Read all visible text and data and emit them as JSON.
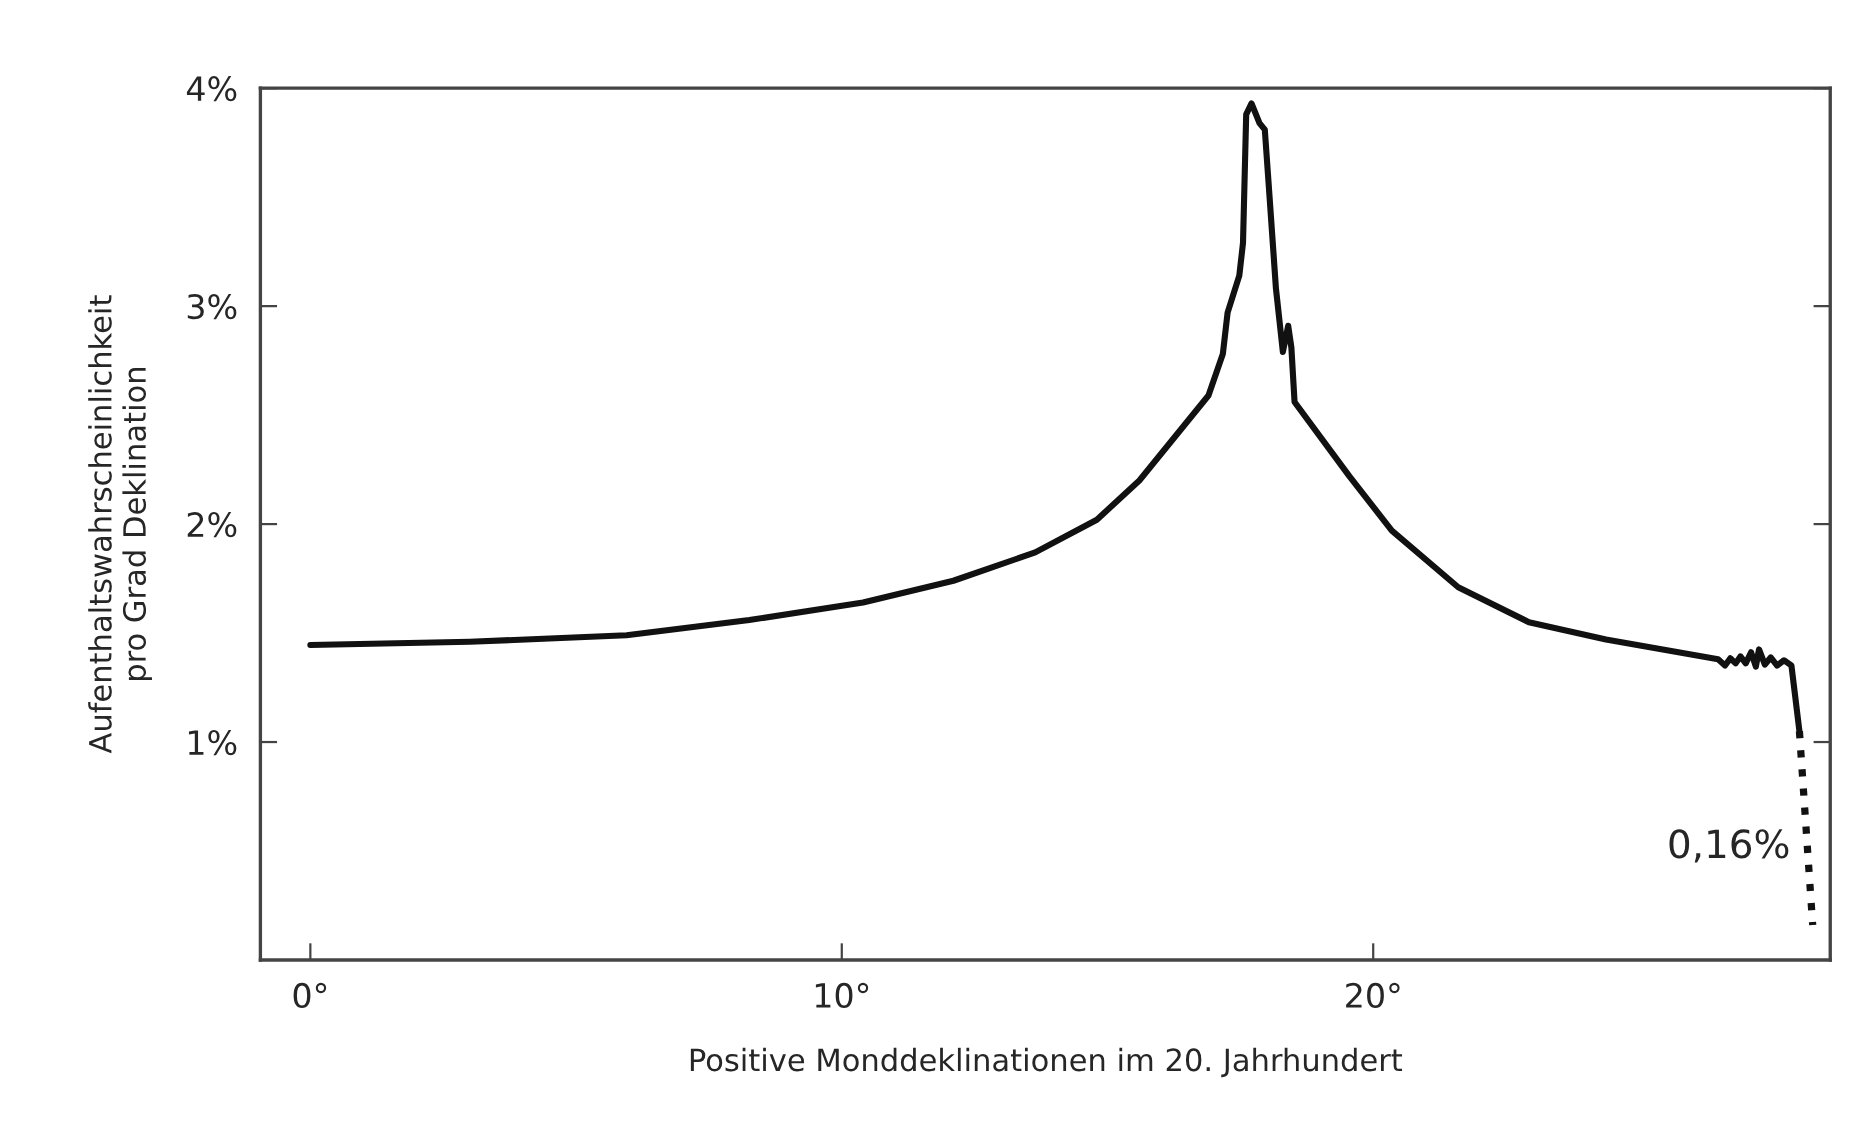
{
  "chart_data": {
    "type": "line",
    "xlabel": "Positive Monddeklinationen im 20. Jahrhundert",
    "ylabel": "Aufenthaltswahrscheinlichkeit\npro Grad Deklination",
    "xlim": [
      -0.94,
      28.6
    ],
    "ylim": [
      0,
      4
    ],
    "xticks": [
      {
        "value": 0,
        "label": "0°"
      },
      {
        "value": 10,
        "label": "10°"
      },
      {
        "value": 20,
        "label": "20°"
      }
    ],
    "yticks": [
      {
        "value": 1,
        "label": "1%"
      },
      {
        "value": 2,
        "label": "2%"
      },
      {
        "value": 3,
        "label": "3%"
      },
      {
        "value": 4,
        "label": "4%"
      }
    ],
    "grid": false,
    "legend": false,
    "marker": "none",
    "series": [
      {
        "color": "#111111",
        "line_style": "solid",
        "x": [
          0,
          3.0,
          5.95,
          8.26,
          10.4,
          12.1,
          13.64,
          14.8,
          15.6,
          16.9,
          17.17,
          17.26,
          17.48,
          17.55,
          17.61,
          17.71,
          17.86,
          17.96,
          18.05,
          18.17,
          18.3,
          18.4,
          18.46,
          18.52,
          19.55,
          20.35,
          21.6,
          22.93,
          24.38,
          26.49,
          26.62,
          26.72,
          26.82,
          26.91,
          27.01,
          27.11,
          27.2,
          27.26,
          27.37,
          27.48,
          27.6,
          27.73,
          27.87,
          28.02
        ],
        "values": [
          1.445,
          1.46,
          1.49,
          1.56,
          1.64,
          1.74,
          1.87,
          2.02,
          2.2,
          2.59,
          2.78,
          2.97,
          3.14,
          3.29,
          3.88,
          3.93,
          3.84,
          3.81,
          3.5,
          3.08,
          2.79,
          2.91,
          2.81,
          2.56,
          2.22,
          1.97,
          1.71,
          1.55,
          1.47,
          1.38,
          1.351,
          1.384,
          1.361,
          1.393,
          1.361,
          1.412,
          1.346,
          1.425,
          1.355,
          1.388,
          1.351,
          1.375,
          1.351,
          1.05
        ]
      },
      {
        "color": "#111111",
        "line_style": "dotted",
        "x": [
          28.02,
          28.27
        ],
        "values": [
          1.05,
          0.16
        ]
      }
    ],
    "annotations": [
      {
        "text": "0,16%",
        "x": 28.27,
        "y": 0.16
      }
    ]
  }
}
